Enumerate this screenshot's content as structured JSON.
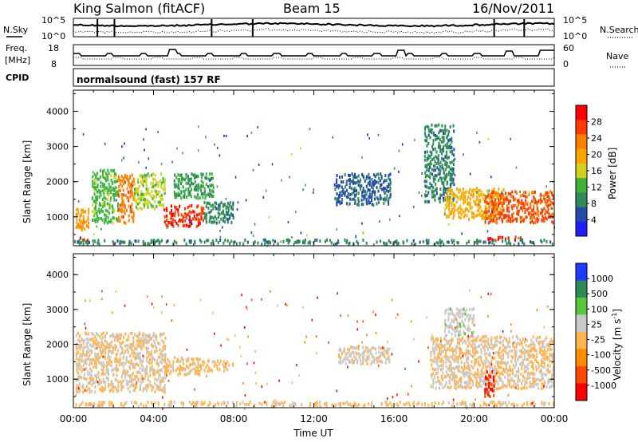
{
  "header": {
    "station": "King Salmon (fitACF)",
    "beam": "Beam 15",
    "date": "16/Nov/2011"
  },
  "strips": {
    "nsky_label": "N.Sky",
    "nsearch_label": "N.Search",
    "noise_ticks": [
      "10^5",
      "10^0"
    ],
    "freq_label_1": "Freq.",
    "freq_label_2": "[MHz]",
    "freq_ticks": [
      "18",
      "8"
    ],
    "nave_label": "Nave",
    "nave_ticks": [
      "60",
      "0"
    ],
    "cpid_label": "CPID",
    "cpid_text": "normalsound (fast) 157 RF"
  },
  "chart_data": [
    {
      "type": "heatmap",
      "panel": "power",
      "ylabel": "Slant Range [km]",
      "xlabel": "Time UT",
      "xticks": [
        "00:00",
        "04:00",
        "08:00",
        "12:00",
        "16:00",
        "20:00",
        "00:00"
      ],
      "xlim_hours": [
        0,
        24
      ],
      "yticks": [
        "1000",
        "2000",
        "3000",
        "4000"
      ],
      "ylim_km": [
        180,
        4600
      ],
      "colorbar_label": "Power [dB]",
      "colorbar_ticks": [
        "28",
        "24",
        "20",
        "16",
        "12",
        "8",
        "4"
      ],
      "colorbar_range": [
        0,
        30
      ],
      "colors": [
        "#1e1eff",
        "#234ba8",
        "#2e8b57",
        "#3cb43c",
        "#d2d21e",
        "#ffa500",
        "#ff7f00",
        "#ff3c00",
        "#ff0000"
      ],
      "regions": [
        {
          "t": [
            0.1,
            0.8
          ],
          "r": [
            600,
            1200
          ],
          "value": 20
        },
        {
          "t": [
            0.3,
            0.8
          ],
          "r": [
            300,
            400
          ],
          "value": 28
        },
        {
          "t": [
            0.9,
            2.2
          ],
          "r": [
            800,
            2300
          ],
          "value": 12
        },
        {
          "t": [
            2.2,
            3.0
          ],
          "r": [
            800,
            2200
          ],
          "value": 22
        },
        {
          "t": [
            3.0,
            4.6
          ],
          "r": [
            1200,
            2200
          ],
          "value": 14
        },
        {
          "t": [
            4.5,
            6.5
          ],
          "r": [
            700,
            1300
          ],
          "value": 26
        },
        {
          "t": [
            5.0,
            7.0
          ],
          "r": [
            1500,
            2200
          ],
          "value": 10
        },
        {
          "t": [
            6.5,
            8.0
          ],
          "r": [
            800,
            1400
          ],
          "value": 8
        },
        {
          "t": [
            13.0,
            15.8
          ],
          "r": [
            1300,
            2200
          ],
          "value": 6
        },
        {
          "t": [
            17.5,
            19.0
          ],
          "r": [
            1400,
            3600
          ],
          "value": 8
        },
        {
          "t": [
            18.5,
            21.5
          ],
          "r": [
            900,
            1800
          ],
          "value": 18
        },
        {
          "t": [
            20.5,
            24.0
          ],
          "r": [
            800,
            1700
          ],
          "value": 24
        },
        {
          "t": [
            20.5,
            22.5
          ],
          "r": [
            300,
            400
          ],
          "value": 28
        },
        {
          "t": [
            0.0,
            24.0
          ],
          "r": [
            200,
            320
          ],
          "value": 8
        }
      ]
    },
    {
      "type": "heatmap",
      "panel": "velocity",
      "ylabel": "Slant Range [km]",
      "xlabel": "Time UT",
      "xticks": [
        "00:00",
        "04:00",
        "08:00",
        "12:00",
        "16:00",
        "20:00",
        "00:00"
      ],
      "xlim_hours": [
        0,
        24
      ],
      "yticks": [
        "1000",
        "2000",
        "3000",
        "4000"
      ],
      "ylim_km": [
        180,
        4600
      ],
      "colorbar_label": "Velocity [m s^-1]",
      "colorbar_ticks": [
        "1000",
        "500",
        "100",
        "25",
        "-25",
        "-100",
        "-500",
        "-1000"
      ],
      "colorbar_range": [
        -1000,
        1000
      ],
      "colors": [
        "#ff0000",
        "#ff4a00",
        "#ff8c00",
        "#ffb450",
        "#c8c8c8",
        "#5ac83c",
        "#2e8b57",
        "#1e3cff"
      ],
      "regions": [
        {
          "t": [
            0.1,
            4.6
          ],
          "r": [
            600,
            2300
          ],
          "value": 0
        },
        {
          "t": [
            4.5,
            6.3
          ],
          "r": [
            1100,
            1600
          ],
          "value": -100
        },
        {
          "t": [
            6.3,
            8.0
          ],
          "r": [
            1200,
            1500
          ],
          "value": -100
        },
        {
          "t": [
            13.2,
            15.8
          ],
          "r": [
            1400,
            1900
          ],
          "value": 60
        },
        {
          "t": [
            17.8,
            24.0
          ],
          "r": [
            700,
            2200
          ],
          "value": 0
        },
        {
          "t": [
            18.5,
            20.0
          ],
          "r": [
            2200,
            3000
          ],
          "value": 150
        },
        {
          "t": [
            20.5,
            21.0
          ],
          "r": [
            400,
            1200
          ],
          "value": -800
        },
        {
          "t": [
            0.0,
            24.0
          ],
          "r": [
            200,
            320
          ],
          "value": -60
        }
      ]
    }
  ]
}
